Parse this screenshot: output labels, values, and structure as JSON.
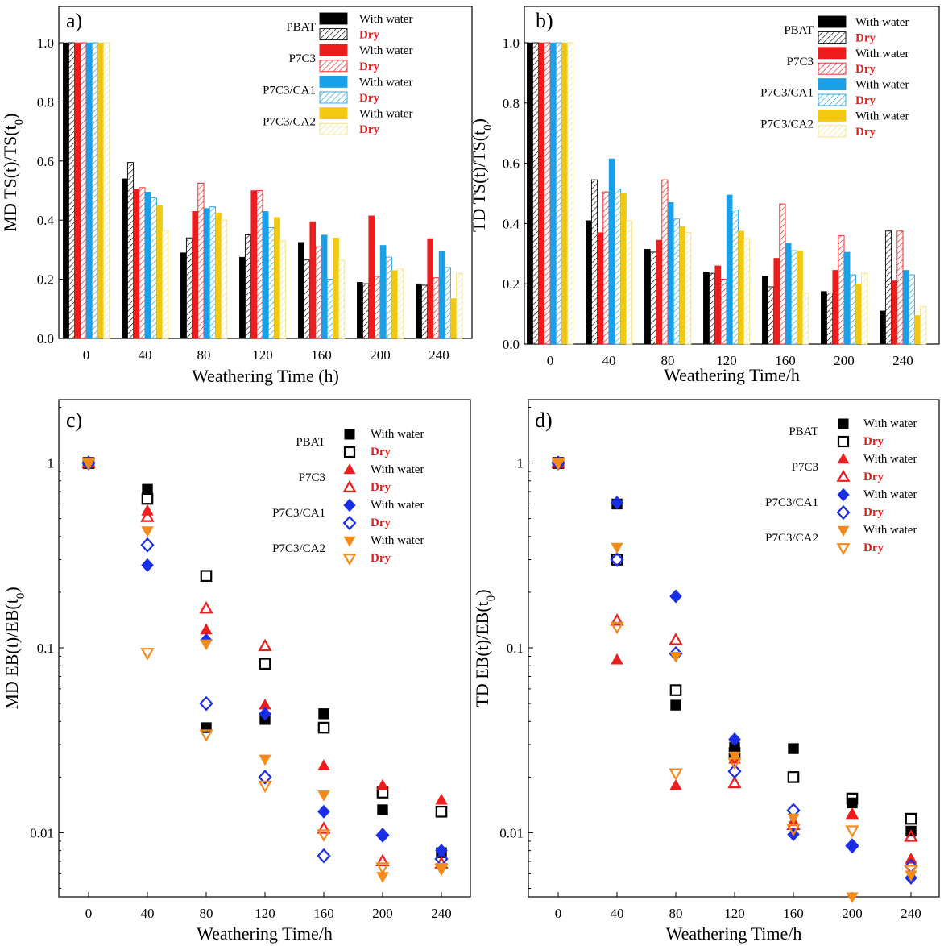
{
  "chart_data": [
    {
      "panel": "a)",
      "type": "bar",
      "xlabel": "Weathering Time (h)",
      "ylabel": "MD TS(t)/TS(t0)",
      "ylim": [
        0,
        1.0
      ],
      "yticks": [
        "0.0",
        "0.2",
        "0.4",
        "0.6",
        "0.8",
        "1.0"
      ],
      "categories": [
        "0",
        "40",
        "80",
        "120",
        "160",
        "200",
        "240"
      ],
      "series": [
        {
          "group": "PBAT",
          "condition": "With water",
          "color": "#000000",
          "fill": "solid",
          "values": [
            1.0,
            0.54,
            0.29,
            0.275,
            0.325,
            0.19,
            0.185
          ]
        },
        {
          "group": "PBAT",
          "condition": "Dry",
          "color": "#000000",
          "fill": "hatch",
          "values": [
            1.0,
            0.595,
            0.34,
            0.35,
            0.265,
            0.185,
            0.18
          ]
        },
        {
          "group": "P7C3",
          "condition": "With water",
          "color": "#ee1c1c",
          "fill": "solid",
          "values": [
            1.0,
            0.505,
            0.43,
            0.5,
            0.395,
            0.415,
            0.338
          ]
        },
        {
          "group": "P7C3",
          "condition": "Dry",
          "color": "#ee1c1c",
          "fill": "hatch",
          "values": [
            1.0,
            0.51,
            0.525,
            0.5,
            0.31,
            0.21,
            0.205
          ]
        },
        {
          "group": "P7C3/CA1",
          "condition": "With water",
          "color": "#1aa0e8",
          "fill": "solid",
          "values": [
            1.0,
            0.495,
            0.44,
            0.43,
            0.35,
            0.315,
            0.295
          ]
        },
        {
          "group": "P7C3/CA1",
          "condition": "Dry",
          "color": "#1aa0e8",
          "fill": "hatch",
          "values": [
            1.0,
            0.475,
            0.445,
            0.375,
            0.2,
            0.275,
            0.24
          ]
        },
        {
          "group": "P7C3/CA2",
          "condition": "With water",
          "color": "#f2c811",
          "fill": "solid",
          "values": [
            1.0,
            0.45,
            0.425,
            0.41,
            0.34,
            0.23,
            0.135
          ]
        },
        {
          "group": "P7C3/CA2",
          "condition": "Dry",
          "color": "#f4e27a",
          "fill": "hatch",
          "values": [
            1.0,
            0.365,
            0.4,
            0.33,
            0.265,
            0.235,
            0.22
          ]
        }
      ]
    },
    {
      "panel": "b)",
      "type": "bar",
      "xlabel": "Weathering Time/h",
      "ylabel": "TD TS(t)/TS(t0)",
      "ylim": [
        0,
        1.0
      ],
      "yticks": [
        "0.0",
        "0.2",
        "0.4",
        "0.6",
        "0.8",
        "1.0"
      ],
      "categories": [
        "0",
        "40",
        "80",
        "120",
        "160",
        "200",
        "240"
      ],
      "series": [
        {
          "group": "PBAT",
          "condition": "With water",
          "color": "#000000",
          "fill": "solid",
          "values": [
            1.0,
            0.41,
            0.315,
            0.24,
            0.225,
            0.175,
            0.11
          ]
        },
        {
          "group": "PBAT",
          "condition": "Dry",
          "color": "#000000",
          "fill": "hatch",
          "values": [
            1.0,
            0.545,
            0.305,
            0.235,
            0.19,
            0.17,
            0.375
          ]
        },
        {
          "group": "P7C3",
          "condition": "With water",
          "color": "#ee1c1c",
          "fill": "solid",
          "values": [
            1.0,
            0.37,
            0.345,
            0.26,
            0.285,
            0.245,
            0.21
          ]
        },
        {
          "group": "P7C3",
          "condition": "Dry",
          "color": "#ee1c1c",
          "fill": "hatch",
          "values": [
            1.0,
            0.505,
            0.545,
            0.215,
            0.465,
            0.36,
            0.375
          ]
        },
        {
          "group": "P7C3/CA1",
          "condition": "With water",
          "color": "#1aa0e8",
          "fill": "solid",
          "values": [
            1.0,
            0.615,
            0.47,
            0.495,
            0.335,
            0.305,
            0.245
          ]
        },
        {
          "group": "P7C3/CA1",
          "condition": "Dry",
          "color": "#1aa0e8",
          "fill": "hatch",
          "values": [
            1.0,
            0.515,
            0.415,
            0.445,
            0.31,
            0.23,
            0.23
          ]
        },
        {
          "group": "P7C3/CA2",
          "condition": "With water",
          "color": "#f2c811",
          "fill": "solid",
          "values": [
            1.0,
            0.5,
            0.39,
            0.375,
            0.31,
            0.2,
            0.095
          ]
        },
        {
          "group": "P7C3/CA2",
          "condition": "Dry",
          "color": "#f4e27a",
          "fill": "hatch",
          "values": [
            1.0,
            0.41,
            0.37,
            0.35,
            0.17,
            0.235,
            0.125
          ]
        }
      ]
    },
    {
      "panel": "c)",
      "type": "scatter",
      "yscale": "log",
      "xlabel": "Weathering Time/h",
      "ylabel": "MD EB(t)/EB(t0)",
      "ylim": [
        0.0045,
        2.2
      ],
      "yticks": [
        {
          "value": 1,
          "label": "1"
        },
        {
          "value": 0.1,
          "label": "0.1"
        },
        {
          "value": 0.01,
          "label": "0.01"
        }
      ],
      "categories": [
        "0",
        "40",
        "80",
        "120",
        "160",
        "200",
        "240"
      ],
      "series": [
        {
          "group": "PBAT",
          "condition": "With water",
          "color": "#000000",
          "marker": "square",
          "filled": true,
          "values": [
            1.0,
            0.72,
            0.037,
            0.041,
            0.044,
            0.0133,
            0.0078
          ]
        },
        {
          "group": "PBAT",
          "condition": "Dry",
          "color": "#000000",
          "marker": "square",
          "filled": false,
          "values": [
            1.0,
            0.64,
            0.245,
            0.082,
            0.037,
            0.0165,
            0.013
          ]
        },
        {
          "group": "P7C3",
          "condition": "With water",
          "color": "#ee1c1c",
          "marker": "triangle-up",
          "filled": true,
          "values": [
            1.0,
            0.55,
            0.125,
            0.049,
            0.023,
            0.018,
            0.015
          ]
        },
        {
          "group": "P7C3",
          "condition": "Dry",
          "color": "#ee1c1c",
          "marker": "triangle-up",
          "filled": false,
          "values": [
            1.0,
            0.51,
            0.163,
            0.102,
            0.0105,
            0.007,
            0.0068
          ]
        },
        {
          "group": "P7C3/CA1",
          "condition": "With water",
          "color": "#1a2ee8",
          "marker": "diamond",
          "filled": true,
          "values": [
            1.0,
            0.28,
            0.11,
            0.044,
            0.013,
            0.0097,
            0.008
          ]
        },
        {
          "group": "P7C3/CA1",
          "condition": "Dry",
          "color": "#1a2ee8",
          "marker": "diamond",
          "filled": false,
          "values": [
            1.0,
            0.36,
            0.05,
            0.02,
            0.0075,
            0.0097,
            0.0072
          ]
        },
        {
          "group": "P7C3/CA2",
          "condition": "With water",
          "color": "#f48a1a",
          "marker": "triangle-down",
          "filled": true,
          "values": [
            1.0,
            0.43,
            0.105,
            0.025,
            0.016,
            0.0058,
            0.0065
          ]
        },
        {
          "group": "P7C3/CA2",
          "condition": "Dry",
          "color": "#f48a1a",
          "marker": "triangle-down",
          "filled": false,
          "values": [
            1.0,
            0.094,
            0.034,
            0.018,
            0.0098,
            0.0065,
            0.0064
          ]
        }
      ]
    },
    {
      "panel": "d)",
      "type": "scatter",
      "yscale": "log",
      "xlabel": "Weathering Time/h",
      "ylabel": "TD EB(t)/EB(t0)",
      "ylim": [
        0.0045,
        2.2
      ],
      "yticks": [
        {
          "value": 1,
          "label": "1"
        },
        {
          "value": 0.1,
          "label": "0.1"
        },
        {
          "value": 0.01,
          "label": "0.01"
        }
      ],
      "categories": [
        "0",
        "40",
        "80",
        "120",
        "160",
        "200",
        "240"
      ],
      "series": [
        {
          "group": "PBAT",
          "condition": "With water",
          "color": "#000000",
          "marker": "square",
          "filled": true,
          "values": [
            1.0,
            0.6,
            0.049,
            0.029,
            0.0285,
            0.0145,
            0.0102
          ]
        },
        {
          "group": "PBAT",
          "condition": "Dry",
          "color": "#000000",
          "marker": "square",
          "filled": false,
          "values": [
            1.0,
            0.3,
            0.059,
            0.027,
            0.02,
            0.0153,
            0.0119
          ]
        },
        {
          "group": "P7C3",
          "condition": "With water",
          "color": "#ee1c1c",
          "marker": "triangle-up",
          "filled": true,
          "values": [
            1.0,
            0.086,
            0.018,
            0.025,
            0.0115,
            0.0125,
            0.0072
          ]
        },
        {
          "group": "P7C3",
          "condition": "Dry",
          "color": "#ee1c1c",
          "marker": "triangle-up",
          "filled": false,
          "values": [
            1.0,
            0.14,
            0.11,
            0.0185,
            0.011,
            0.0125,
            0.0095
          ]
        },
        {
          "group": "P7C3/CA1",
          "condition": "With water",
          "color": "#1a2ee8",
          "marker": "diamond",
          "filled": true,
          "values": [
            1.0,
            0.61,
            0.19,
            0.032,
            0.0098,
            0.0084,
            0.0057
          ]
        },
        {
          "group": "P7C3/CA1",
          "condition": "Dry",
          "color": "#1a2ee8",
          "marker": "diamond",
          "filled": false,
          "values": [
            1.0,
            0.3,
            0.093,
            0.0215,
            0.0132,
            0.0085,
            0.0066
          ]
        },
        {
          "group": "P7C3/CA2",
          "condition": "With water",
          "color": "#f48a1a",
          "marker": "triangle-down",
          "filled": true,
          "values": [
            1.0,
            0.35,
            0.09,
            0.026,
            0.012,
            0.0045,
            0.0059
          ]
        },
        {
          "group": "P7C3/CA2",
          "condition": "Dry",
          "color": "#f48a1a",
          "marker": "triangle-down",
          "filled": false,
          "values": [
            1.0,
            0.13,
            0.021,
            0.024,
            0.0105,
            0.0103,
            0.0063
          ]
        }
      ]
    }
  ]
}
